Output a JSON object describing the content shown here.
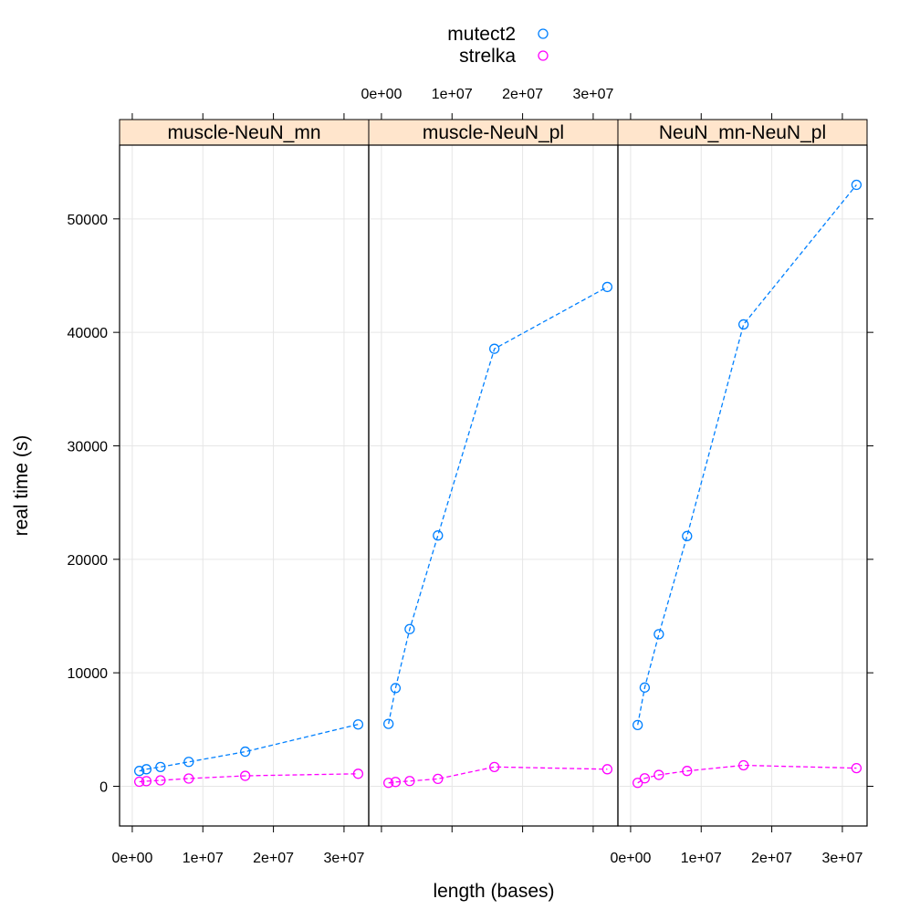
{
  "chart_data": {
    "type": "line",
    "xlabel": "length (bases)",
    "ylabel": "real time (s)",
    "xlim": [
      -1800000,
      33500000
    ],
    "ylim": [
      -3500,
      56500
    ],
    "x_ticks": [
      0,
      10000000,
      20000000,
      30000000
    ],
    "x_tick_labels": [
      "0e+00",
      "1e+07",
      "2e+07",
      "3e+07"
    ],
    "y_ticks": [
      0,
      10000,
      20000,
      30000,
      40000,
      50000
    ],
    "y_tick_labels": [
      "0",
      "10000",
      "20000",
      "30000",
      "40000",
      "50000"
    ],
    "grid": true,
    "legend_position": "top-center",
    "legend": [
      {
        "name": "mutect2",
        "color": "#0080ff"
      },
      {
        "name": "strelka",
        "color": "#ff00ff"
      }
    ],
    "panels": [
      {
        "label": "muscle-NeuN_mn",
        "series": [
          {
            "name": "mutect2",
            "points": [
              [
                1000000,
                1350
              ],
              [
                2000000,
                1500
              ],
              [
                4000000,
                1700
              ],
              [
                8000000,
                2150
              ],
              [
                16000000,
                3050
              ],
              [
                32000000,
                5450
              ]
            ]
          },
          {
            "name": "strelka",
            "points": [
              [
                1000000,
                400
              ],
              [
                2000000,
                450
              ],
              [
                4000000,
                520
              ],
              [
                8000000,
                680
              ],
              [
                16000000,
                920
              ],
              [
                32000000,
                1100
              ]
            ]
          }
        ]
      },
      {
        "label": "muscle-NeuN_pl",
        "series": [
          {
            "name": "mutect2",
            "points": [
              [
                1000000,
                5500
              ],
              [
                2000000,
                8650
              ],
              [
                4000000,
                13850
              ],
              [
                8000000,
                22100
              ],
              [
                16000000,
                38550
              ],
              [
                32000000,
                44000
              ]
            ]
          },
          {
            "name": "strelka",
            "points": [
              [
                1000000,
                300
              ],
              [
                2000000,
                380
              ],
              [
                4000000,
                460
              ],
              [
                8000000,
                650
              ],
              [
                16000000,
                1700
              ],
              [
                32000000,
                1500
              ]
            ]
          }
        ]
      },
      {
        "label": "NeuN_mn-NeuN_pl",
        "series": [
          {
            "name": "mutect2",
            "points": [
              [
                1000000,
                5400
              ],
              [
                2000000,
                8700
              ],
              [
                4000000,
                13400
              ],
              [
                8000000,
                22050
              ],
              [
                16000000,
                40700
              ],
              [
                32000000,
                53000
              ]
            ]
          },
          {
            "name": "strelka",
            "points": [
              [
                1000000,
                300
              ],
              [
                2000000,
                700
              ],
              [
                4000000,
                1000
              ],
              [
                8000000,
                1350
              ],
              [
                16000000,
                1850
              ],
              [
                32000000,
                1600
              ]
            ]
          }
        ]
      }
    ]
  },
  "colors": {
    "grid": "#e6e6e6",
    "strip_fill": "#ffe5cc",
    "frame": "#000000"
  }
}
